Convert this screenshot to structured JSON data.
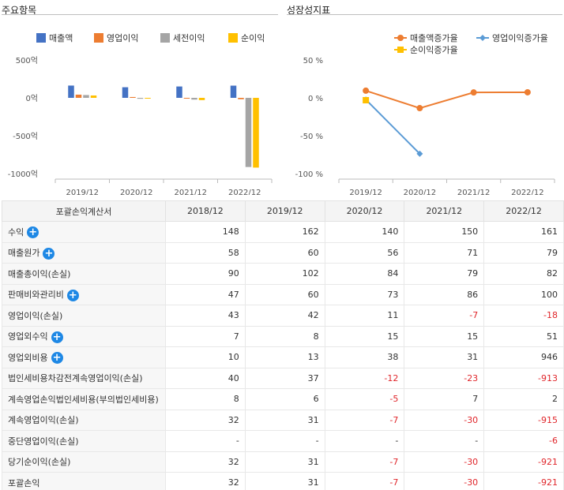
{
  "titles": {
    "left": "주요항목",
    "right": "성장성지표"
  },
  "chart_data": [
    {
      "type": "bar",
      "categories": [
        "2019/12",
        "2020/12",
        "2021/12",
        "2022/12"
      ],
      "series": [
        {
          "name": "매출액",
          "color": "#4472c4",
          "values": [
            162,
            140,
            150,
            161
          ]
        },
        {
          "name": "영업이익",
          "color": "#ed7d31",
          "values": [
            42,
            11,
            -7,
            -18
          ]
        },
        {
          "name": "세전이익",
          "color": "#a5a5a5",
          "values": [
            37,
            -12,
            -23,
            -913
          ]
        },
        {
          "name": "순이익",
          "color": "#ffc000",
          "values": [
            31,
            -7,
            -30,
            -921
          ]
        }
      ],
      "yticks": [
        "500억",
        "0억",
        "-500억",
        "-1000억"
      ],
      "ylim": [
        -1000,
        500
      ],
      "legend": "top"
    },
    {
      "type": "line",
      "categories": [
        "2019/12",
        "2020/12",
        "2021/12",
        "2022/12"
      ],
      "series": [
        {
          "name": "매출액증가율",
          "color": "#ed7d31",
          "marker": "circle",
          "values": [
            9.46,
            -13.58,
            7.14,
            7.33
          ]
        },
        {
          "name": "영업이익증가율",
          "color": "#5b9bd5",
          "marker": "diamond",
          "values": [
            -2.33,
            -73.81,
            null,
            null
          ]
        },
        {
          "name": "순이익증가율",
          "color": "#ffc000",
          "marker": "square",
          "values": [
            -3.13,
            null,
            null,
            null
          ]
        }
      ],
      "yticks": [
        "50 %",
        "0 %",
        "-50 %",
        "-100 %"
      ],
      "ylim": [
        -100,
        50
      ],
      "legend": "top"
    }
  ],
  "table": {
    "header": [
      "포괄손익계산서",
      "2018/12",
      "2019/12",
      "2020/12",
      "2021/12",
      "2022/12"
    ],
    "rows": [
      {
        "label": "수익",
        "plus": true,
        "values": [
          "148",
          "162",
          "140",
          "150",
          "161"
        ]
      },
      {
        "label": "매출원가",
        "plus": true,
        "values": [
          "58",
          "60",
          "56",
          "71",
          "79"
        ]
      },
      {
        "label": "매출총이익(손실)",
        "plus": false,
        "values": [
          "90",
          "102",
          "84",
          "79",
          "82"
        ]
      },
      {
        "label": "판매비와관리비",
        "plus": true,
        "values": [
          "47",
          "60",
          "73",
          "86",
          "100"
        ]
      },
      {
        "label": "영업이익(손실)",
        "plus": false,
        "values": [
          "43",
          "42",
          "11",
          "-7",
          "-18"
        ]
      },
      {
        "label": "영업외수익",
        "plus": true,
        "values": [
          "7",
          "8",
          "15",
          "15",
          "51"
        ]
      },
      {
        "label": "영업외비용",
        "plus": true,
        "values": [
          "10",
          "13",
          "38",
          "31",
          "946"
        ]
      },
      {
        "label": "법인세비용차감전계속영업이익(손실)",
        "plus": false,
        "values": [
          "40",
          "37",
          "-12",
          "-23",
          "-913"
        ]
      },
      {
        "label": "계속영업손익법인세비용(부의법인세비용)",
        "plus": false,
        "values": [
          "8",
          "6",
          "-5",
          "7",
          "2"
        ]
      },
      {
        "label": "계속영업이익(손실)",
        "plus": false,
        "values": [
          "32",
          "31",
          "-7",
          "-30",
          "-915"
        ]
      },
      {
        "label": "중단영업이익(손실)",
        "plus": false,
        "values": [
          "-",
          "-",
          "-",
          "-",
          "-6"
        ]
      },
      {
        "label": "당기순이익(손실)",
        "plus": false,
        "values": [
          "32",
          "31",
          "-7",
          "-30",
          "-921"
        ]
      },
      {
        "label": "포괄손익",
        "plus": false,
        "values": [
          "32",
          "31",
          "-7",
          "-30",
          "-921"
        ]
      }
    ],
    "plus_symbol": "+"
  }
}
